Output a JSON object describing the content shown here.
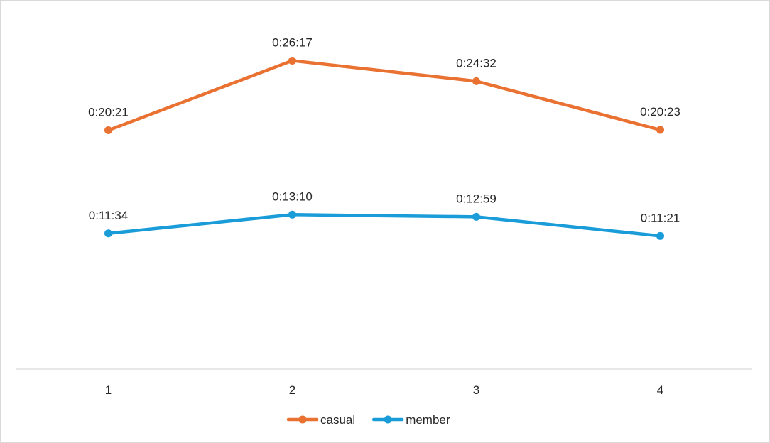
{
  "chart_data": {
    "type": "line",
    "title": "",
    "xlabel": "",
    "ylabel": "",
    "categories": [
      "1",
      "2",
      "3",
      "4"
    ],
    "ylim_seconds": [
      0,
      1800
    ],
    "grid": false,
    "legend_position": "bottom",
    "series": [
      {
        "name": "casual",
        "color": "#E97132",
        "values_seconds": [
          1221,
          1577,
          1472,
          1223
        ],
        "labels": [
          "0:20:21",
          "0:26:17",
          "0:24:32",
          "0:20:23"
        ]
      },
      {
        "name": "member",
        "color": "#1A9CD8",
        "values_seconds": [
          694,
          790,
          779,
          681
        ],
        "labels": [
          "0:11:34",
          "0:13:10",
          "0:12:59",
          "0:11:21"
        ]
      }
    ]
  }
}
